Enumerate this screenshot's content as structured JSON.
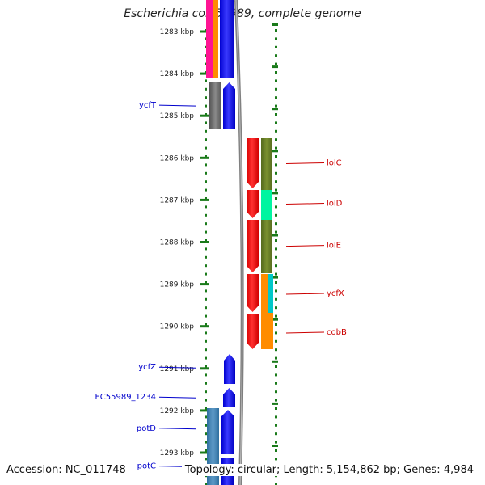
{
  "title": "Escherichia coli 55989, complete genome",
  "accession": "Accession: NC_011748",
  "summary": "Topology: circular; Length: 5,154,862 bp; Genes: 4,984",
  "ticks": [
    {
      "label": "1283 kbp",
      "pos": 1283
    },
    {
      "label": "1284 kbp",
      "pos": 1284
    },
    {
      "label": "1285 kbp",
      "pos": 1285
    },
    {
      "label": "1286 kbp",
      "pos": 1286
    },
    {
      "label": "1287 kbp",
      "pos": 1287
    },
    {
      "label": "1288 kbp",
      "pos": 1288
    },
    {
      "label": "1289 kbp",
      "pos": 1289
    },
    {
      "label": "1290 kbp",
      "pos": 1290
    },
    {
      "label": "1291 kbp",
      "pos": 1291
    },
    {
      "label": "1292 kbp",
      "pos": 1292
    },
    {
      "label": "1293 kbp",
      "pos": 1293
    }
  ],
  "left_labels": [
    {
      "text": "ycfT",
      "pos": 1284.75
    },
    {
      "text": "ycfZ",
      "pos": 1290.97
    },
    {
      "text": "EC55989_1234",
      "pos": 1291.68
    },
    {
      "text": "potD",
      "pos": 1292.42
    },
    {
      "text": "potC",
      "pos": 1293.32
    }
  ],
  "right_labels": [
    {
      "text": "lolC",
      "pos": 1286.1
    },
    {
      "text": "lolD",
      "pos": 1287.06
    },
    {
      "text": "lolE",
      "pos": 1288.06
    },
    {
      "text": "ycfX",
      "pos": 1289.2
    },
    {
      "text": "cobB",
      "pos": 1290.12
    }
  ],
  "colors": {
    "tick": "#1a7a1a",
    "left_label": "#0000cc",
    "right_label": "#cc0000",
    "backbone": "#808080"
  }
}
